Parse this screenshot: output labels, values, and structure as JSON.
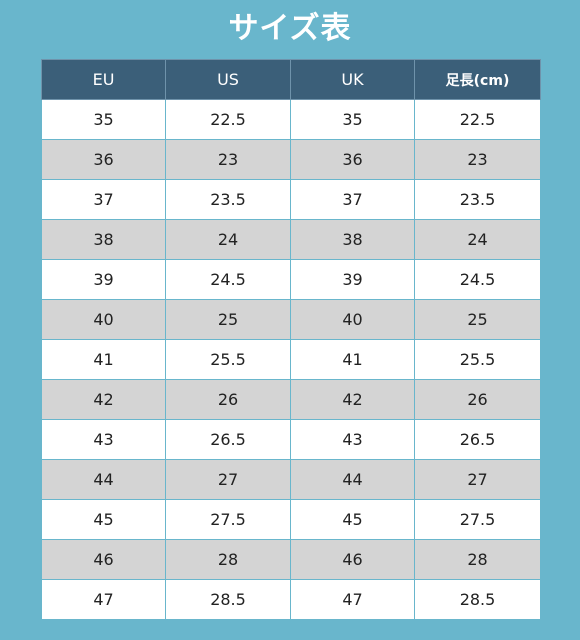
{
  "title": "サイズ表",
  "table": {
    "headers": [
      "EU",
      "US",
      "UK",
      "足長(cm)"
    ],
    "rows": [
      [
        "35",
        "22.5",
        "35",
        "22.5"
      ],
      [
        "36",
        "23",
        "36",
        "23"
      ],
      [
        "37",
        "23.5",
        "37",
        "23.5"
      ],
      [
        "38",
        "24",
        "38",
        "24"
      ],
      [
        "39",
        "24.5",
        "39",
        "24.5"
      ],
      [
        "40",
        "25",
        "40",
        "25"
      ],
      [
        "41",
        "25.5",
        "41",
        "25.5"
      ],
      [
        "42",
        "26",
        "42",
        "26"
      ],
      [
        "43",
        "26.5",
        "43",
        "26.5"
      ],
      [
        "44",
        "27",
        "44",
        "27"
      ],
      [
        "45",
        "27.5",
        "45",
        "27.5"
      ],
      [
        "46",
        "28",
        "46",
        "28"
      ],
      [
        "47",
        "28.5",
        "47",
        "28.5"
      ]
    ]
  },
  "colors": {
    "background": "#69b6cc",
    "header": "#3b5f79",
    "row_light": "#ffffff",
    "row_shaded": "#d4d4d4"
  }
}
